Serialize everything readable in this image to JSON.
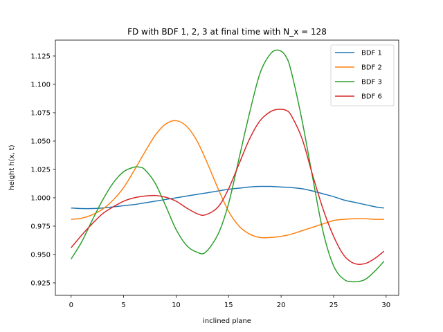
{
  "chart_data": {
    "type": "line",
    "title": "FD with BDF 1, 2, 3 at final time with N_x = 128",
    "xlabel": "inclined plane",
    "ylabel": "height h(x, t)",
    "xlim": [
      -1.5,
      31.2
    ],
    "ylim": [
      0.914,
      1.139
    ],
    "xticks": [
      0,
      5,
      10,
      15,
      20,
      25,
      30
    ],
    "yticks": [
      0.925,
      0.95,
      0.975,
      1.0,
      1.025,
      1.05,
      1.075,
      1.1,
      1.125
    ],
    "ytick_labels": [
      "0.925",
      "0.950",
      "0.975",
      "1.000",
      "1.025",
      "1.050",
      "1.075",
      "1.100",
      "1.125"
    ],
    "grid": false,
    "legend_position": "top-right",
    "series": [
      {
        "name": "BDF 1",
        "color": "#1f77b4",
        "x": [
          0,
          1,
          2,
          3,
          4,
          5,
          6,
          7,
          8,
          9,
          10,
          11,
          12,
          13,
          14,
          15,
          16,
          17,
          18,
          19,
          20,
          21,
          22,
          23,
          24,
          25,
          26,
          27,
          28,
          29,
          29.8
        ],
        "y": [
          0.991,
          0.9905,
          0.9905,
          0.991,
          0.992,
          0.993,
          0.994,
          0.9955,
          0.997,
          0.9985,
          1.0,
          1.0015,
          1.003,
          1.0045,
          1.006,
          1.0075,
          1.0085,
          1.0095,
          1.01,
          1.01,
          1.0095,
          1.009,
          1.008,
          1.006,
          1.0035,
          1.001,
          0.998,
          0.996,
          0.994,
          0.992,
          0.991
        ]
      },
      {
        "name": "BDF 2",
        "color": "#ff7f0e",
        "x": [
          0,
          1,
          2,
          3,
          4,
          5,
          6,
          7,
          8,
          9,
          10,
          11,
          12,
          13,
          14,
          15,
          16,
          17,
          18,
          19,
          20,
          21,
          22,
          23,
          24,
          25,
          26,
          27,
          28,
          29,
          29.8
        ],
        "y": [
          0.981,
          0.982,
          0.985,
          0.99,
          0.998,
          1.009,
          1.024,
          1.04,
          1.055,
          1.065,
          1.068,
          1.063,
          1.05,
          1.03,
          1.008,
          0.988,
          0.975,
          0.968,
          0.965,
          0.965,
          0.966,
          0.968,
          0.971,
          0.974,
          0.977,
          0.98,
          0.981,
          0.9815,
          0.9815,
          0.981,
          0.981
        ]
      },
      {
        "name": "BDF 3",
        "color": "#2ca02c",
        "x": [
          0,
          1,
          2,
          3,
          4,
          5,
          6,
          6.5,
          7,
          8,
          9,
          10,
          11,
          12,
          12.8,
          14,
          15,
          16,
          17,
          18,
          19,
          19.8,
          20.5,
          21,
          22,
          23,
          24,
          25,
          26,
          27,
          28,
          29,
          29.8
        ],
        "y": [
          0.946,
          0.961,
          0.98,
          0.998,
          1.013,
          1.023,
          1.027,
          1.027,
          1.025,
          1.013,
          0.993,
          0.972,
          0.958,
          0.952,
          0.952,
          0.968,
          0.995,
          1.035,
          1.075,
          1.11,
          1.127,
          1.13,
          1.124,
          1.11,
          1.068,
          1.018,
          0.97,
          0.94,
          0.928,
          0.926,
          0.928,
          0.936,
          0.944
        ]
      },
      {
        "name": "BDF 6",
        "color": "#d62728",
        "x": [
          0,
          1,
          2,
          3,
          4,
          5,
          6,
          7,
          8,
          9,
          10,
          11,
          12,
          12.8,
          14,
          15,
          16,
          17,
          18,
          19,
          19.8,
          20.5,
          21,
          22,
          23,
          24,
          25,
          26,
          27,
          28,
          29,
          29.8
        ],
        "y": [
          0.956,
          0.967,
          0.977,
          0.986,
          0.992,
          0.997,
          1.0,
          1.0015,
          1.002,
          1.0005,
          0.997,
          0.991,
          0.986,
          0.985,
          0.992,
          1.008,
          1.03,
          1.052,
          1.068,
          1.076,
          1.078,
          1.077,
          1.072,
          1.052,
          1.02,
          0.99,
          0.966,
          0.949,
          0.942,
          0.942,
          0.947,
          0.953
        ]
      }
    ]
  }
}
